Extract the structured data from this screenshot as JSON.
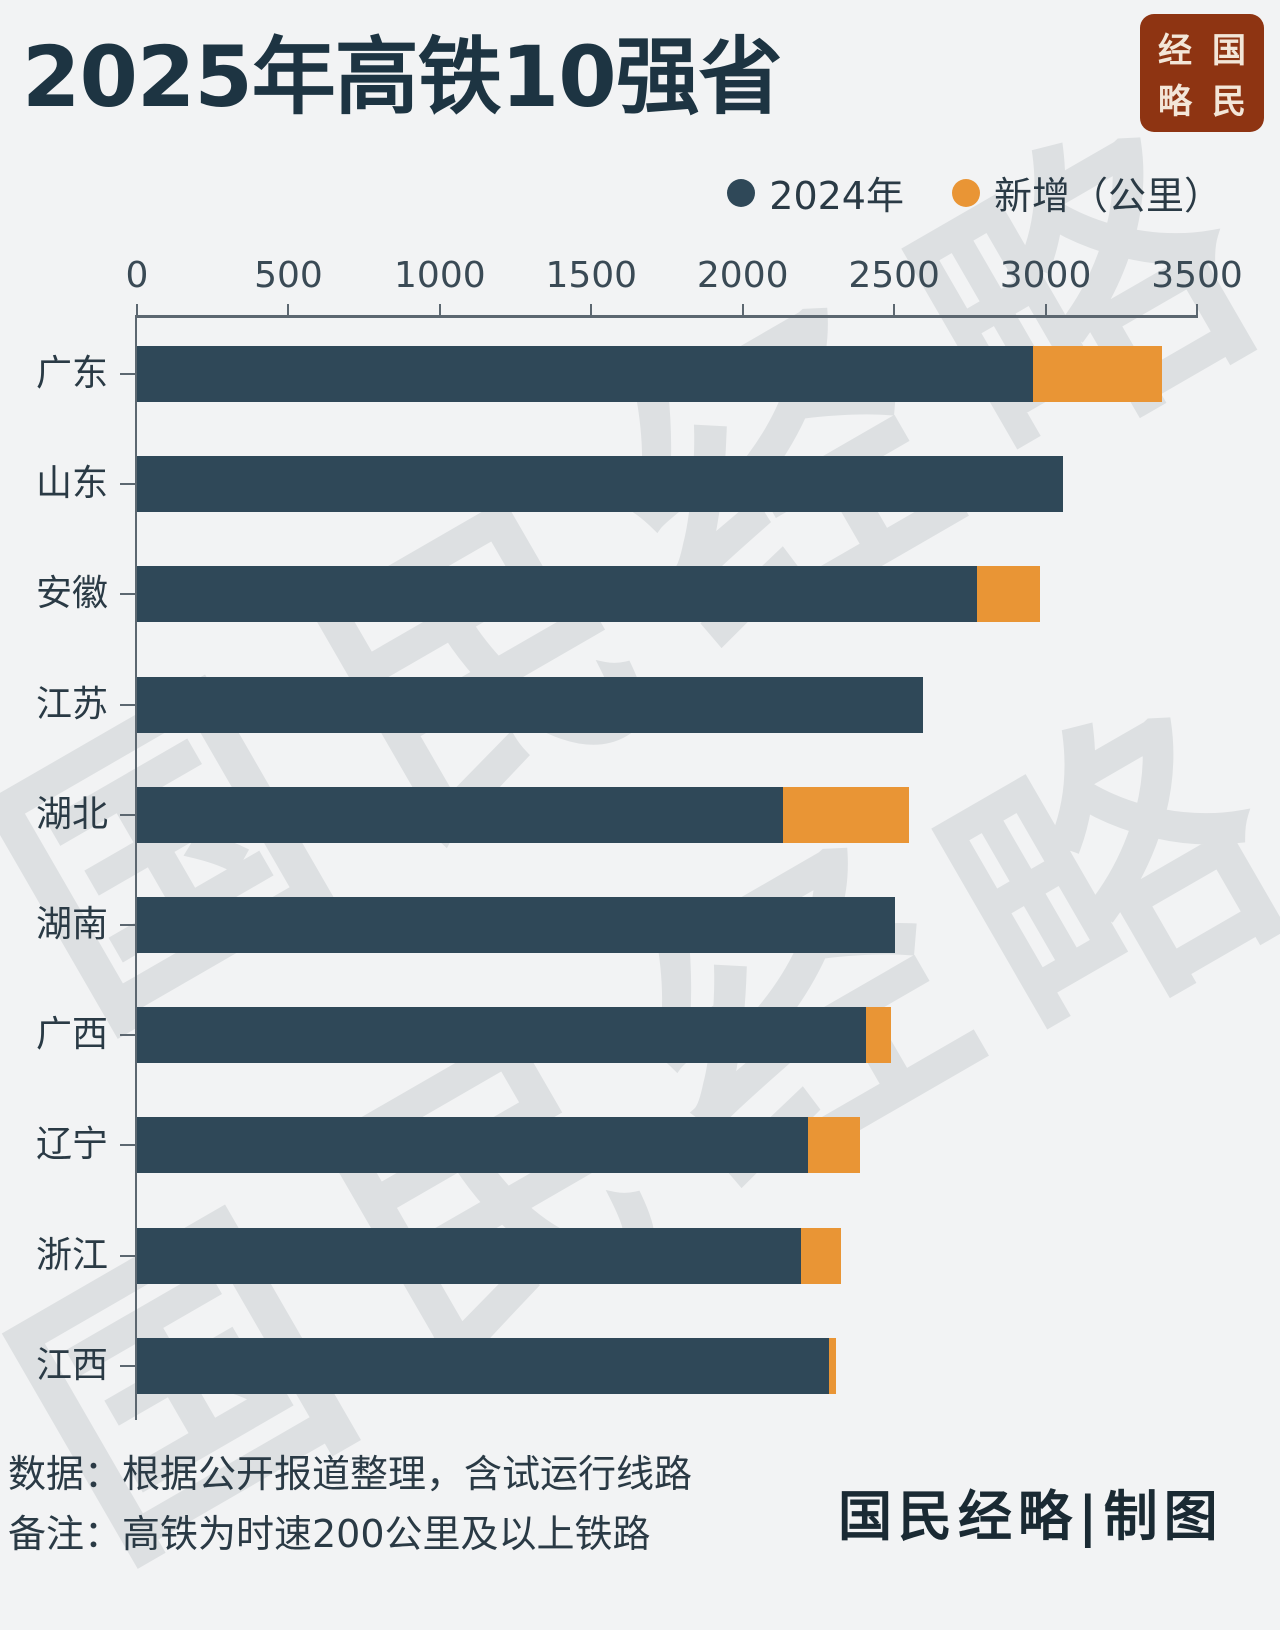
{
  "header": {
    "title": "2025年高铁10强省",
    "seal": [
      "经",
      "国",
      "略",
      "民"
    ]
  },
  "legend": [
    {
      "label": "2024年",
      "color": "#2f4858"
    },
    {
      "label": "新增（公里）",
      "color": "#e99535"
    }
  ],
  "footer": {
    "source": "数据：根据公开报道整理，含试运行线路",
    "note": "备注：高铁为时速200公里及以上铁路",
    "brand": "国民经略|制图"
  },
  "watermark": [
    "国",
    "民",
    "经",
    "略"
  ],
  "chart_data": {
    "type": "bar",
    "orientation": "horizontal",
    "stacked": true,
    "title": "2025年高铁10强省",
    "xlabel": "",
    "ylabel": "",
    "xlim": [
      0,
      3500
    ],
    "x_ticks": [
      0,
      500,
      1000,
      1500,
      2000,
      2500,
      3000,
      3500
    ],
    "legend_position": "top-right",
    "grid": false,
    "categories": [
      "广东",
      "山东",
      "安徽",
      "江苏",
      "湖北",
      "湖南",
      "广西",
      "辽宁",
      "浙江",
      "江西"
    ],
    "series": [
      {
        "name": "2024年",
        "color": "#2f4858",
        "values": [
          2960,
          3058,
          2775,
          2595,
          2133,
          2503,
          2407,
          2216,
          2192,
          2285
        ]
      },
      {
        "name": "新增（公里）",
        "color": "#e99535",
        "values": [
          425,
          0,
          207,
          0,
          416,
          0,
          83,
          171,
          133,
          23
        ]
      }
    ]
  }
}
